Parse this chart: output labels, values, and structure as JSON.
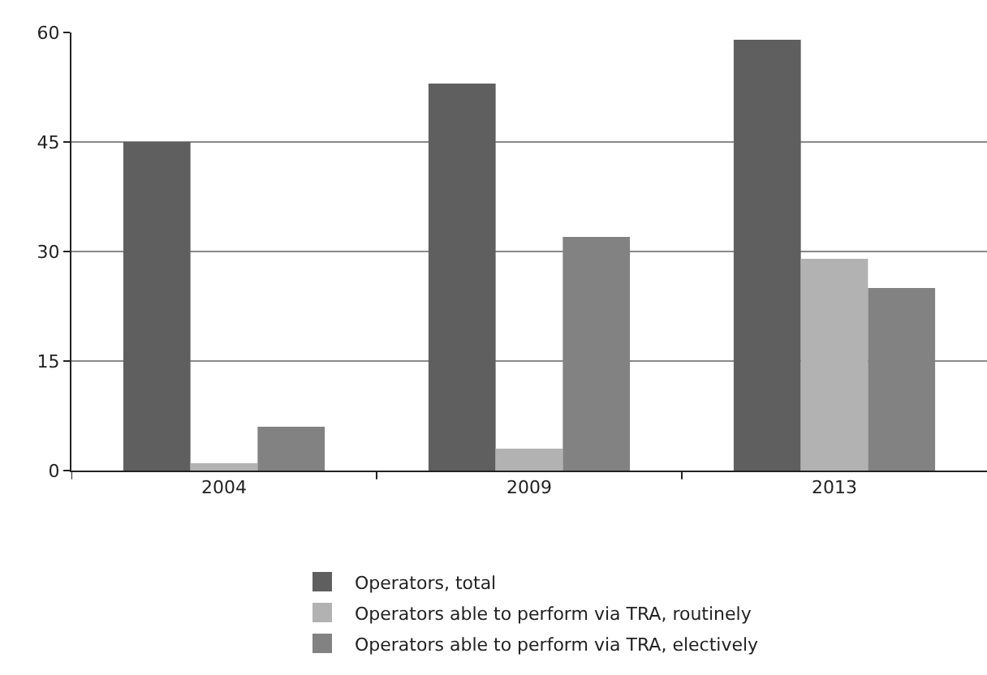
{
  "chart_data": {
    "type": "bar",
    "categories": [
      "2004",
      "2009",
      "2013"
    ],
    "series": [
      {
        "name": "Operators, total",
        "color": "#5f5f5f",
        "values": [
          45,
          53,
          59
        ]
      },
      {
        "name": "Operators able to perform via TRA, routinely",
        "color": "#b2b2b2",
        "values": [
          1,
          3,
          29
        ]
      },
      {
        "name": "Operators able to perform via TRA, electively",
        "color": "#828282",
        "values": [
          6,
          32,
          25
        ]
      }
    ],
    "ylim": [
      0,
      60
    ],
    "yticks": [
      0,
      15,
      30,
      45,
      60
    ],
    "grid": "y",
    "legend": "bottom"
  }
}
